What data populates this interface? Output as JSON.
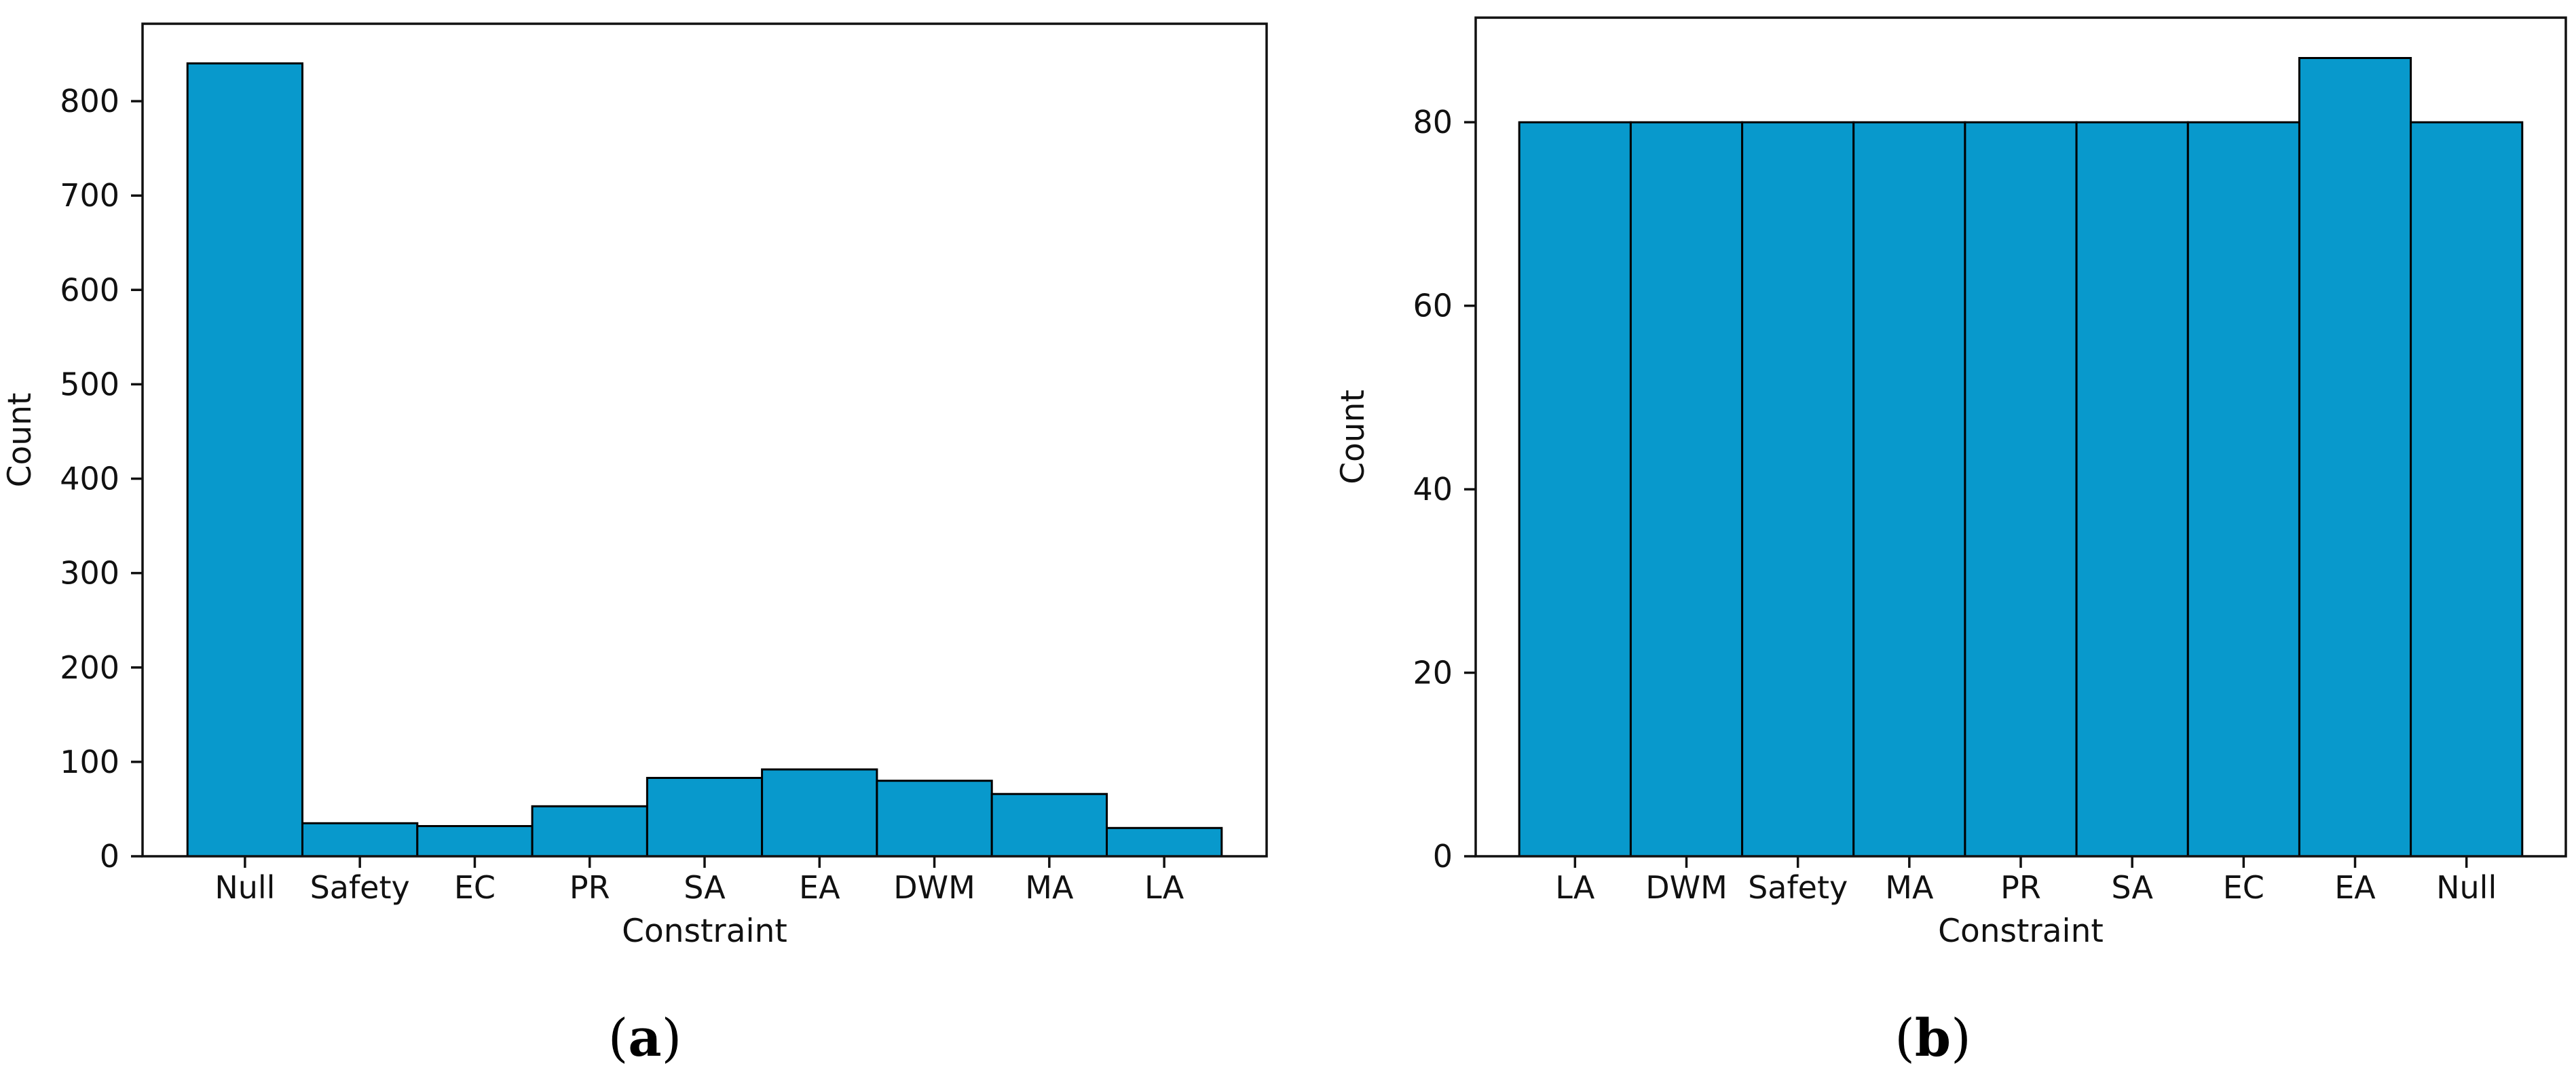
{
  "figure": {
    "background": "#ffffff",
    "text_color": "#111111"
  },
  "chart_data": [
    {
      "type": "bar",
      "panel": "a",
      "title": "",
      "xlabel": "Constraint",
      "ylabel": "Count",
      "categories": [
        "Null",
        "Safety",
        "EC",
        "PR",
        "SA",
        "EA",
        "DWM",
        "MA",
        "LA"
      ],
      "values": [
        840,
        35,
        32,
        53,
        83,
        92,
        80,
        66,
        30
      ],
      "ylim": [
        0,
        882
      ],
      "yticks": [
        0,
        100,
        200,
        300,
        400,
        500,
        600,
        700,
        800
      ],
      "bar_color": "#0899cc",
      "bar_edge_color": "#000000",
      "grid": false,
      "legend": "none"
    },
    {
      "type": "bar",
      "panel": "b",
      "title": "",
      "xlabel": "Constraint",
      "ylabel": "Count",
      "categories": [
        "LA",
        "DWM",
        "Safety",
        "MA",
        "PR",
        "SA",
        "EC",
        "EA",
        "Null"
      ],
      "values": [
        80,
        80,
        80,
        80,
        80,
        80,
        80,
        87,
        80
      ],
      "ylim": [
        0,
        91.4
      ],
      "yticks": [
        0,
        20,
        40,
        60,
        80
      ],
      "bar_color": "#0899cc",
      "bar_edge_color": "#000000",
      "grid": false,
      "legend": "none"
    }
  ],
  "panels": [
    {
      "caption": {
        "open": "(",
        "letter": "a",
        "close": ")"
      }
    },
    {
      "caption": {
        "open": "(",
        "letter": "b",
        "close": ")"
      }
    }
  ]
}
